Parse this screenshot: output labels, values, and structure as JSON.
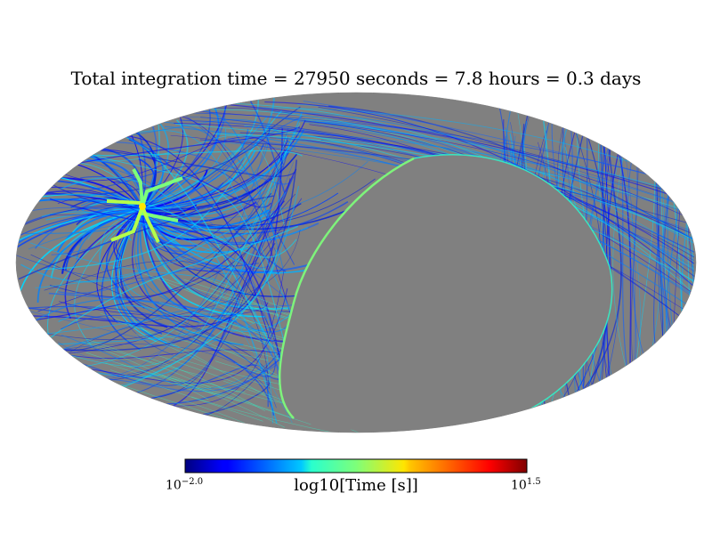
{
  "chart_data": {
    "type": "heatmap",
    "projection": "mollweide",
    "title": "Total integration time = 27950 seconds = 7.8 hours = 0.3 days",
    "colorbar": {
      "label": "log10[Time [s]]",
      "min_base": "10",
      "min_exp": "−2.0",
      "max_base": "10",
      "max_exp": "1.5",
      "log_range": [
        -2.0,
        1.5
      ],
      "colormap": "jet"
    },
    "total_seconds": 27950,
    "total_hours": 7.8,
    "total_days": 0.3,
    "unobserved_color": "#808080"
  }
}
